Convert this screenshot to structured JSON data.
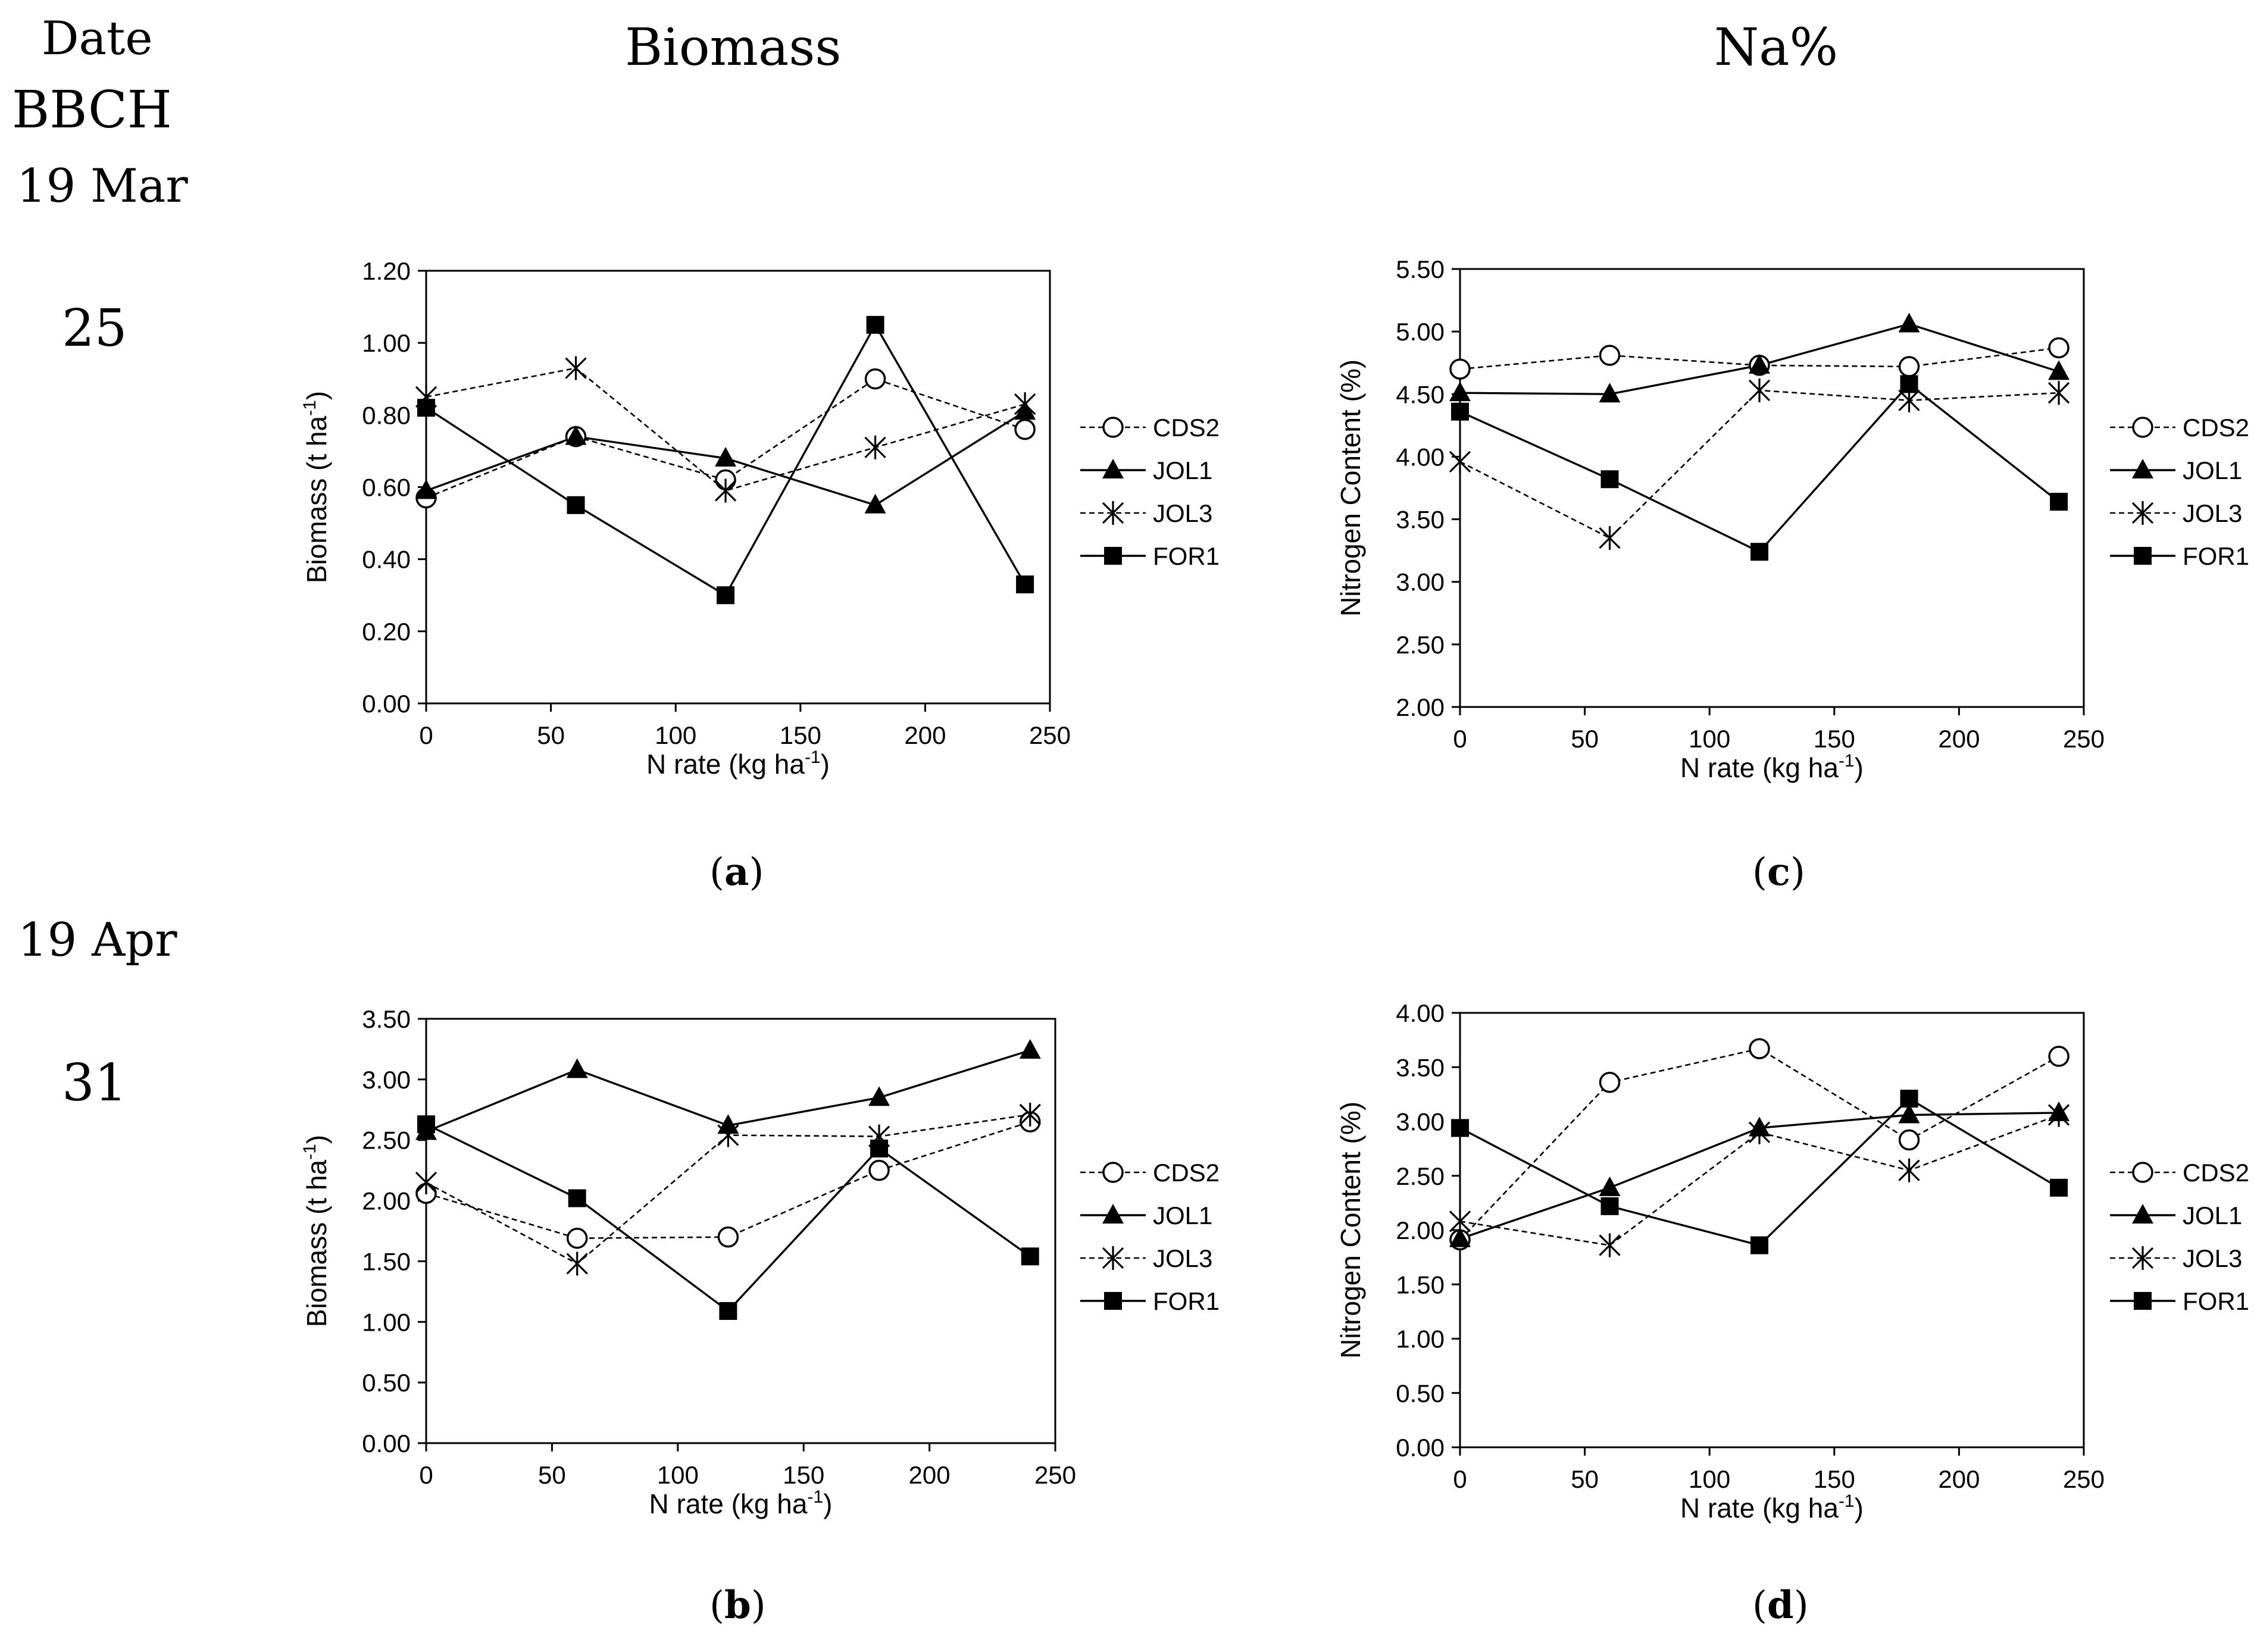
{
  "row_header": {
    "date": "Date",
    "bbch": "BBCH"
  },
  "column_titles": {
    "biomass": "Biomass",
    "na": "Na%"
  },
  "rows": [
    {
      "date": "19 Mar",
      "bbch": "25"
    },
    {
      "date": "19 Apr",
      "bbch": "31"
    }
  ],
  "panel_labels": {
    "a": "a",
    "b": "b",
    "c": "c",
    "d": "d"
  },
  "chart_data": [
    {
      "id": "a",
      "type": "line",
      "xlabel": "N rate (kg ha",
      "xlabel_sup": "-1",
      "xlabel_tail": ")",
      "ylabel": "Biomass (t ha",
      "ylabel_sup": "-1",
      "ylabel_tail": ")",
      "x": [
        0,
        60,
        120,
        180,
        240
      ],
      "xlim": [
        0,
        250
      ],
      "ylim": [
        0,
        1.2
      ],
      "xticks": [
        "0",
        "50",
        "100",
        "150",
        "200",
        "250"
      ],
      "yticks": [
        "0.00",
        "0.20",
        "0.40",
        "0.60",
        "0.80",
        "1.00",
        "1.20"
      ],
      "legend_position": "right",
      "series": [
        {
          "name": "CDS2",
          "marker": "circle",
          "dash": true,
          "values": [
            0.57,
            0.74,
            0.62,
            0.9,
            0.76
          ]
        },
        {
          "name": "JOL1",
          "marker": "triangle",
          "dash": false,
          "values": [
            0.59,
            0.74,
            0.68,
            0.55,
            0.81
          ]
        },
        {
          "name": "JOL3",
          "marker": "star",
          "dash": true,
          "values": [
            0.85,
            0.93,
            0.59,
            0.71,
            0.83
          ]
        },
        {
          "name": "FOR1",
          "marker": "square",
          "dash": false,
          "values": [
            0.82,
            0.55,
            0.3,
            1.05,
            0.33
          ]
        }
      ]
    },
    {
      "id": "b",
      "type": "line",
      "xlabel": "N rate (kg ha",
      "xlabel_sup": "-1",
      "xlabel_tail": ")",
      "ylabel": "Biomass (t ha",
      "ylabel_sup": "-1",
      "ylabel_tail": ")",
      "x": [
        0,
        60,
        120,
        180,
        240
      ],
      "xlim": [
        0,
        250
      ],
      "ylim": [
        0,
        3.5
      ],
      "xticks": [
        "0",
        "50",
        "100",
        "150",
        "200",
        "250"
      ],
      "yticks": [
        "0.00",
        "0.50",
        "1.00",
        "1.50",
        "2.00",
        "2.50",
        "3.00",
        "3.50"
      ],
      "legend_position": "right",
      "series": [
        {
          "name": "CDS2",
          "marker": "circle",
          "dash": true,
          "values": [
            2.06,
            1.69,
            1.7,
            2.25,
            2.65
          ]
        },
        {
          "name": "JOL1",
          "marker": "triangle",
          "dash": false,
          "values": [
            2.57,
            3.08,
            2.62,
            2.85,
            3.24
          ]
        },
        {
          "name": "JOL3",
          "marker": "star",
          "dash": true,
          "values": [
            2.15,
            1.48,
            2.54,
            2.53,
            2.71
          ]
        },
        {
          "name": "FOR1",
          "marker": "square",
          "dash": false,
          "values": [
            2.63,
            2.02,
            1.09,
            2.43,
            1.54
          ]
        }
      ]
    },
    {
      "id": "c",
      "type": "line",
      "xlabel": "N rate (kg ha",
      "xlabel_sup": "-1",
      "xlabel_tail": ")",
      "ylabel": "Nitrogen Content (%)",
      "ylabel_sup": "",
      "ylabel_tail": "",
      "x": [
        0,
        60,
        120,
        180,
        240
      ],
      "xlim": [
        0,
        250
      ],
      "ylim": [
        2.0,
        5.5
      ],
      "xticks": [
        "0",
        "50",
        "100",
        "150",
        "200",
        "250"
      ],
      "yticks": [
        "2.00",
        "2.50",
        "3.00",
        "3.50",
        "4.00",
        "4.50",
        "5.00",
        "5.50"
      ],
      "legend_position": "right",
      "series": [
        {
          "name": "CDS2",
          "marker": "circle",
          "dash": true,
          "values": [
            4.7,
            4.81,
            4.73,
            4.72,
            4.87
          ]
        },
        {
          "name": "JOL1",
          "marker": "triangle",
          "dash": false,
          "values": [
            4.51,
            4.5,
            4.73,
            5.06,
            4.68
          ]
        },
        {
          "name": "JOL3",
          "marker": "star",
          "dash": true,
          "values": [
            3.96,
            3.35,
            4.53,
            4.45,
            4.51
          ]
        },
        {
          "name": "FOR1",
          "marker": "square",
          "dash": false,
          "values": [
            4.36,
            3.82,
            3.24,
            4.58,
            3.64
          ]
        }
      ]
    },
    {
      "id": "d",
      "type": "line",
      "xlabel": "N rate (kg ha",
      "xlabel_sup": "-1",
      "xlabel_tail": ")",
      "ylabel": "Nitrogen Content (%)",
      "ylabel_sup": "",
      "ylabel_tail": "",
      "x": [
        0,
        60,
        120,
        180,
        240
      ],
      "xlim": [
        0,
        250
      ],
      "ylim": [
        0,
        4.0
      ],
      "xticks": [
        "0",
        "50",
        "100",
        "150",
        "200",
        "250"
      ],
      "yticks": [
        "0.00",
        "0.50",
        "1.00",
        "1.50",
        "2.00",
        "2.50",
        "3.00",
        "3.50",
        "4.00"
      ],
      "legend_position": "right",
      "series": [
        {
          "name": "CDS2",
          "marker": "circle",
          "dash": true,
          "values": [
            1.91,
            3.36,
            3.67,
            2.83,
            3.6
          ]
        },
        {
          "name": "JOL1",
          "marker": "triangle",
          "dash": false,
          "values": [
            1.92,
            2.39,
            2.94,
            3.06,
            3.08
          ]
        },
        {
          "name": "JOL3",
          "marker": "star",
          "dash": true,
          "values": [
            2.08,
            1.86,
            2.9,
            2.55,
            3.06
          ]
        },
        {
          "name": "FOR1",
          "marker": "square",
          "dash": false,
          "values": [
            2.94,
            2.22,
            1.86,
            3.21,
            2.39
          ]
        }
      ]
    }
  ]
}
